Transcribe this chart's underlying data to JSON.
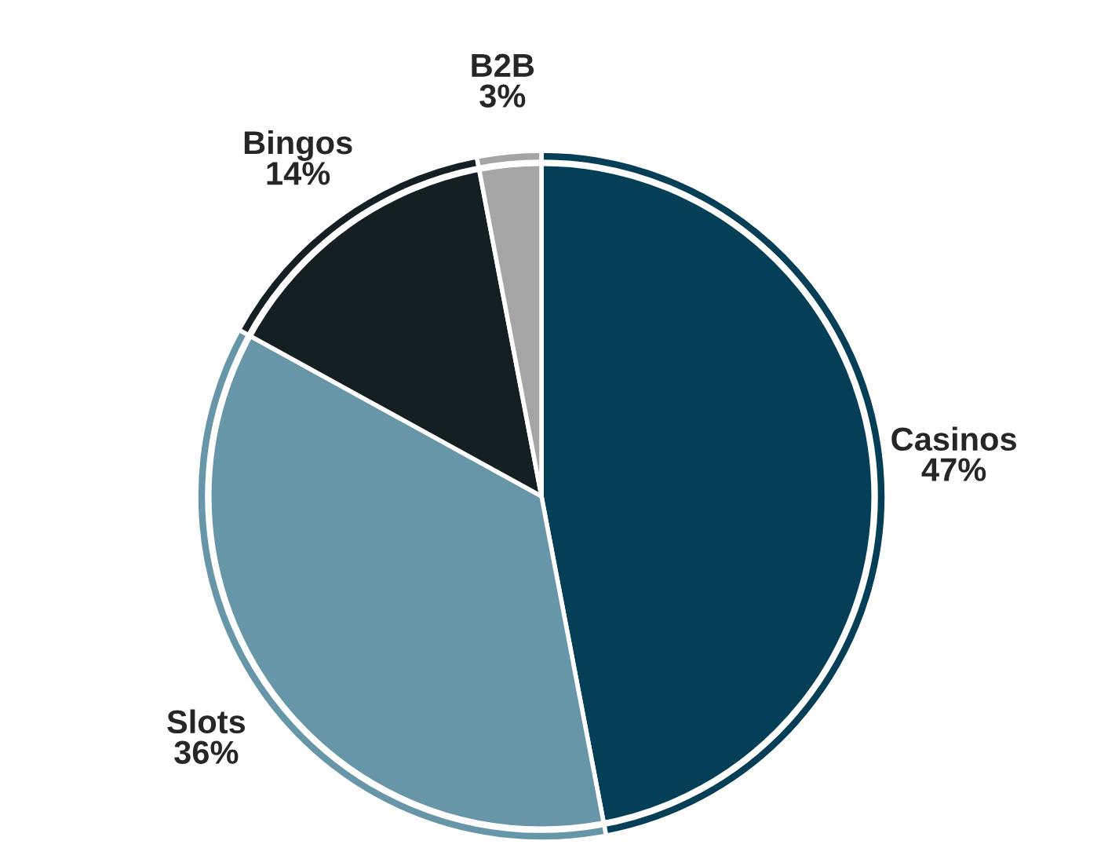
{
  "chart_data": {
    "type": "pie",
    "categories": [
      "Casinos",
      "Slots",
      "Bingos",
      "B2B"
    ],
    "values": [
      47,
      36,
      14,
      3
    ],
    "value_labels": [
      "47%",
      "36%",
      "14%",
      "3%"
    ],
    "colors": [
      "#053f57",
      "#6896a9",
      "#131f23",
      "#a5a5a5"
    ]
  }
}
